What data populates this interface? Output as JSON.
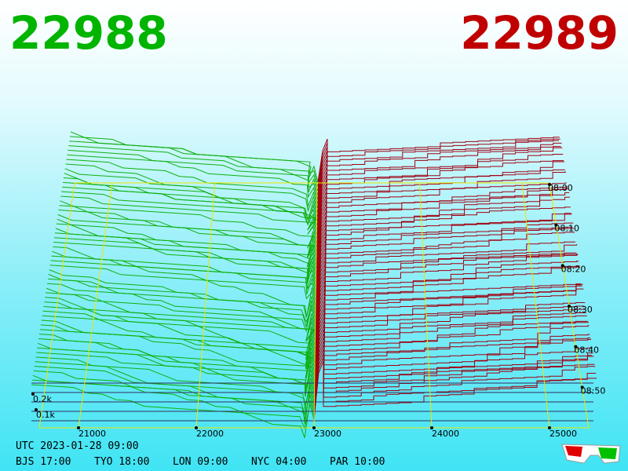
{
  "header": {
    "bid": "22988",
    "ask": "22989"
  },
  "axes": {
    "price_ticks": [
      21000,
      22000,
      23000,
      24000,
      25000
    ],
    "time_ticks": [
      "08:00",
      "08:10",
      "08:20",
      "08:30",
      "08:40",
      "08:50"
    ],
    "depth_ticks": [
      "0.2k",
      "0.1k"
    ]
  },
  "footer": {
    "utc": "UTC 2023-01-28 09:00",
    "cities": [
      "BJS 17:00",
      "TYO 18:00",
      "LON 09:00",
      "NYC 04:00",
      "PAR 10:00"
    ]
  }
}
